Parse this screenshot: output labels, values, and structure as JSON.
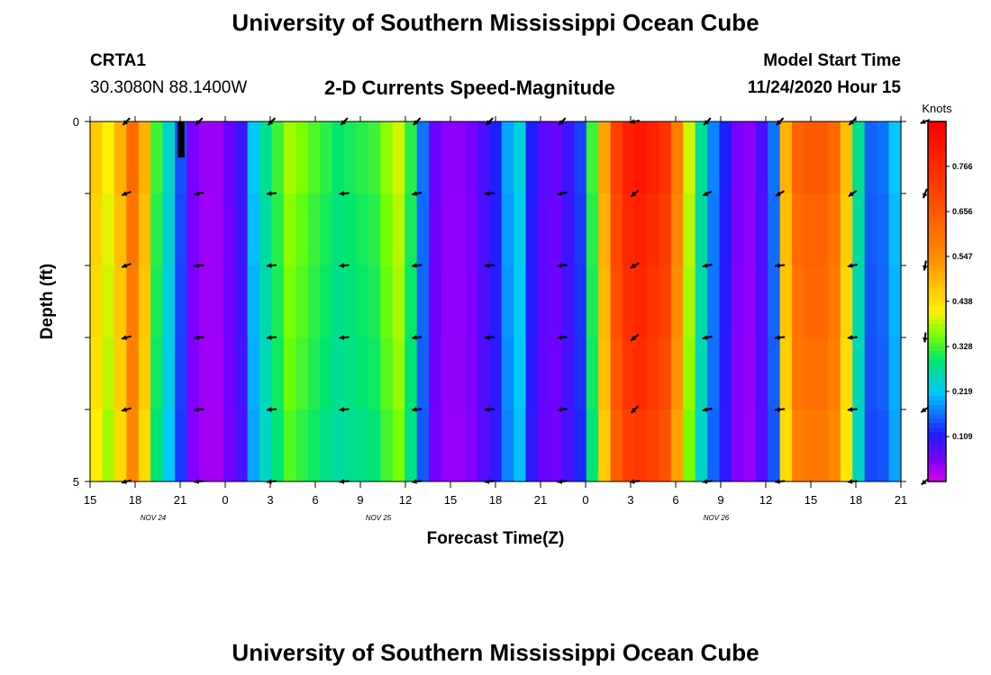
{
  "header": {
    "title_top": "University of Southern Mississippi Ocean Cube",
    "title_bottom": "University of Southern Mississippi Ocean Cube",
    "station_id": "CRTA1",
    "station_coords": "30.3080N 88.1400W",
    "subtitle": "2-D Currents Speed-Magnitude",
    "model_start_label": "Model Start Time",
    "model_start_value": "11/24/2020 Hour 15"
  },
  "chart_data": {
    "type": "heatmap",
    "title": "2-D Currents Speed-Magnitude",
    "xlabel": "Forecast Time(Z)",
    "ylabel": "Depth (ft)",
    "y_range": [
      0,
      5
    ],
    "y_tick_labels": [
      "0",
      "5"
    ],
    "x_tick_labels": [
      "15",
      "18",
      "21",
      "0",
      "3",
      "6",
      "9",
      "12",
      "15",
      "18",
      "21",
      "0",
      "3",
      "6",
      "9",
      "12",
      "15",
      "18",
      "21"
    ],
    "date_labels": [
      {
        "text": "NOV  24",
        "tick_index": 1.4
      },
      {
        "text": "NOV  25",
        "tick_index": 6.4
      },
      {
        "text": "NOV  26",
        "tick_index": 13.9
      }
    ],
    "colorbar": {
      "unit": "Knots",
      "min": 0.0,
      "max": 0.875,
      "tick_values": [
        0.109,
        0.219,
        0.328,
        0.438,
        0.547,
        0.656,
        0.766
      ],
      "tick_labels": [
        "0.109",
        "0.219",
        "0.328",
        "0.438",
        "0.547",
        "0.656",
        "0.766"
      ]
    },
    "rows": 5,
    "speed_columns_by_hour": [
      0.47,
      0.42,
      0.5,
      0.62,
      0.5,
      0.33,
      0.25,
      0.15,
      0.06,
      0.04,
      0.04,
      0.07,
      0.1,
      0.22,
      0.28,
      0.33,
      0.38,
      0.36,
      0.34,
      0.32,
      0.3,
      0.31,
      0.32,
      0.33,
      0.37,
      0.4,
      0.32,
      0.17,
      0.07,
      0.05,
      0.05,
      0.06,
      0.09,
      0.12,
      0.2,
      0.24,
      0.12,
      0.08,
      0.07,
      0.1,
      0.14,
      0.33,
      0.52,
      0.72,
      0.8,
      0.82,
      0.79,
      0.75,
      0.58,
      0.4,
      0.28,
      0.18,
      0.12,
      0.06,
      0.05,
      0.09,
      0.17,
      0.5,
      0.64,
      0.66,
      0.66,
      0.62,
      0.48,
      0.28,
      0.16,
      0.17,
      0.22
    ],
    "depth_factors": [
      1.0,
      0.97,
      0.95,
      0.93,
      0.9
    ],
    "anomaly_cells": [
      {
        "hour": 7,
        "row": 0,
        "speed": 0.0
      }
    ],
    "vector_hours": [
      3,
      9,
      15,
      21,
      27,
      33,
      39,
      45,
      51,
      57,
      63,
      69,
      75,
      81,
      87,
      93,
      99,
      105,
      111,
      117
    ],
    "vector_directions_deg": [
      [
        225,
        225,
        225,
        225,
        225,
        225,
        225,
        190,
        225,
        225,
        225,
        200,
        250,
        225,
        225,
        180,
        225,
        225,
        225,
        225
      ],
      [
        200,
        190,
        185,
        185,
        190,
        185,
        190,
        220,
        205,
        210,
        215,
        250,
        240,
        230,
        245,
        260,
        240,
        235,
        225,
        250
      ],
      [
        200,
        185,
        185,
        185,
        185,
        185,
        185,
        210,
        190,
        185,
        190,
        260,
        255,
        220,
        200,
        260,
        235,
        215,
        230,
        245
      ],
      [
        195,
        185,
        185,
        185,
        185,
        185,
        185,
        220,
        190,
        185,
        185,
        265,
        245,
        230,
        230,
        240,
        235,
        225,
        225,
        225
      ],
      [
        195,
        185,
        185,
        185,
        185,
        185,
        185,
        225,
        190,
        185,
        185,
        215,
        230,
        230,
        215,
        230,
        230,
        225,
        205,
        220
      ],
      [
        195,
        185,
        185,
        185,
        185,
        185,
        185,
        185,
        185,
        185,
        185,
        220,
        225,
        215,
        200,
        210,
        230,
        205,
        205,
        205
      ]
    ]
  }
}
